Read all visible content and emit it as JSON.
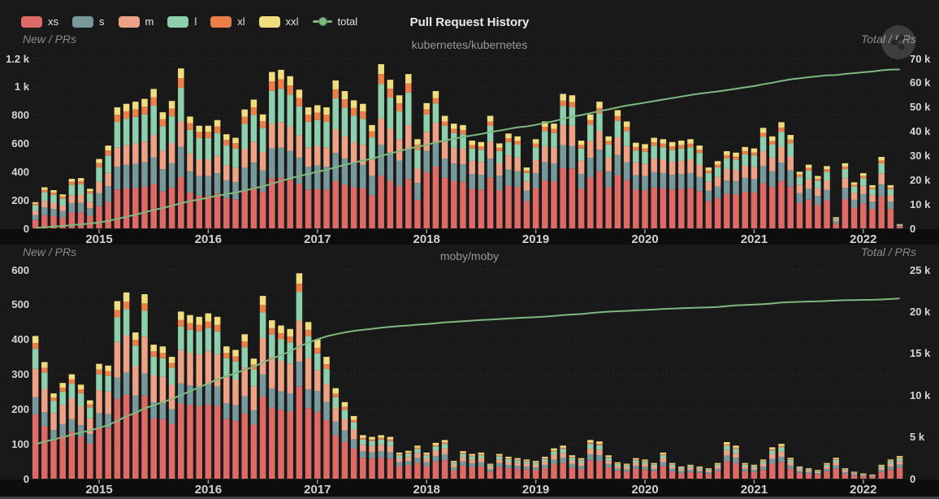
{
  "header": {
    "title": "Pull Request History",
    "legend": [
      {
        "label": "xs",
        "color": "#dd6a64",
        "kind": "box"
      },
      {
        "label": "s",
        "color": "#77999c",
        "kind": "box"
      },
      {
        "label": "m",
        "color": "#eda285",
        "kind": "box"
      },
      {
        "label": "l",
        "color": "#8ecfae",
        "kind": "box"
      },
      {
        "label": "xl",
        "color": "#ec7f48",
        "kind": "box"
      },
      {
        "label": "xxl",
        "color": "#f2dd7e",
        "kind": "box"
      },
      {
        "label": "total",
        "color": "#7fb97f",
        "kind": "line"
      }
    ]
  },
  "share_button": {
    "icon": "share-icon"
  },
  "colors": {
    "xs": "#dd6a64",
    "s": "#77999c",
    "m": "#eda285",
    "l": "#8ecfae",
    "xl": "#ec7f48",
    "xxl": "#f2dd7e",
    "total": "#7fb97f",
    "grid": "#2a2a2a",
    "axis_text": "#d6d6d6"
  },
  "chart_data": [
    {
      "type": "bar",
      "subtype": "stacked-monthly-bars-with-cumulative-line",
      "subtitle": "kubernetes/kubernetes",
      "left_axis_label": "New / PRs",
      "right_axis_label": "Total / PRs",
      "left_ticks": [
        "1.2 k",
        "1 k",
        "800",
        "600",
        "400",
        "200",
        "0"
      ],
      "right_ticks": [
        "70 k",
        "60 k",
        "50 k",
        "40 k",
        "30 k",
        "20 k",
        "10 k",
        "0"
      ],
      "left_max": 1200,
      "right_max": 70000,
      "x_labels": [
        "2015",
        "2016",
        "2017",
        "2018",
        "2019",
        "2020",
        "2021",
        "2022"
      ],
      "x_range_note": "monthly bars Jun 2014 - May 2022",
      "series_order": [
        "xs",
        "s",
        "m",
        "l",
        "xl",
        "xxl"
      ],
      "monthly_totals": [
        185,
        290,
        270,
        240,
        350,
        355,
        280,
        490,
        585,
        855,
        880,
        895,
        915,
        985,
        820,
        900,
        1130,
        790,
        725,
        725,
        765,
        665,
        640,
        840,
        910,
        805,
        1105,
        1120,
        1075,
        980,
        855,
        870,
        855,
        1045,
        970,
        905,
        880,
        730,
        1160,
        1050,
        940,
        1090,
        630,
        885,
        970,
        795,
        740,
        730,
        620,
        610,
        795,
        600,
        670,
        650,
        430,
        630,
        755,
        740,
        950,
        940,
        620,
        805,
        895,
        650,
        835,
        755,
        605,
        595,
        640,
        630,
        610,
        620,
        630,
        585,
        430,
        475,
        545,
        535,
        575,
        565,
        710,
        650,
        750,
        660,
        400,
        450,
        370,
        440,
        80,
        460,
        325,
        390,
        305,
        505,
        305,
        30
      ],
      "size_fractions_early": [
        0.32,
        0.19,
        0.16,
        0.21,
        0.06,
        0.06
      ],
      "size_fractions_late": [
        0.45,
        0.17,
        0.15,
        0.14,
        0.04,
        0.05
      ],
      "fraction_switch_index": 43,
      "cumulative_start": 0
    },
    {
      "type": "bar",
      "subtype": "stacked-monthly-bars-with-cumulative-line",
      "subtitle": "moby/moby",
      "left_axis_label": "New / PRs",
      "right_axis_label": "Total / PRs",
      "left_ticks": [
        "600",
        "500",
        "400",
        "300",
        "200",
        "100",
        "0"
      ],
      "right_ticks": [
        "25 k",
        "20 k",
        "15 k",
        "10 k",
        "5 k",
        "0"
      ],
      "left_max": 600,
      "right_max": 25000,
      "x_labels": [
        "2015",
        "2016",
        "2017",
        "2018",
        "2019",
        "2020",
        "2021",
        "2022"
      ],
      "x_range_note": "monthly bars Jun 2014 - May 2022",
      "series_order": [
        "xs",
        "s",
        "m",
        "l",
        "xl",
        "xxl"
      ],
      "monthly_totals": [
        410,
        335,
        245,
        275,
        300,
        270,
        225,
        330,
        325,
        510,
        535,
        420,
        530,
        385,
        380,
        350,
        480,
        470,
        465,
        475,
        465,
        380,
        370,
        415,
        345,
        525,
        455,
        440,
        430,
        590,
        450,
        400,
        350,
        260,
        220,
        180,
        125,
        120,
        125,
        120,
        75,
        80,
        95,
        75,
        103,
        111,
        51,
        79,
        71,
        75,
        43,
        71,
        63,
        59,
        55,
        51,
        63,
        87,
        95,
        67,
        59,
        111,
        107,
        67,
        47,
        43,
        59,
        55,
        45,
        75,
        45,
        35,
        40,
        35,
        30,
        45,
        105,
        95,
        45,
        40,
        55,
        90,
        100,
        60,
        35,
        30,
        25,
        45,
        60,
        30,
        20,
        15,
        12,
        40,
        55,
        65
      ],
      "size_fractions_early": [
        0.45,
        0.12,
        0.2,
        0.14,
        0.04,
        0.05
      ],
      "size_fractions_late": [
        0.48,
        0.15,
        0.15,
        0.12,
        0.04,
        0.06
      ],
      "fraction_switch_index": 31,
      "cumulative_start": 3700
    }
  ]
}
